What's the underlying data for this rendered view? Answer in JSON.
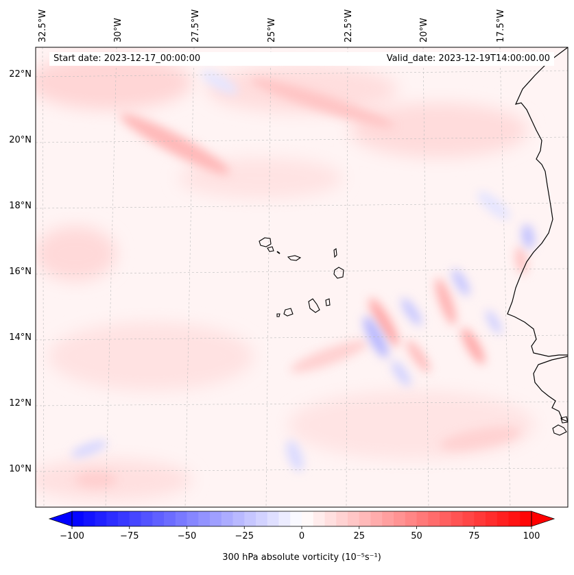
{
  "map": {
    "start_date_label": "Start date: 2023-12-17_00:00:00",
    "valid_date_label": "Valid_date: 2023-12-19T14:00:00.00",
    "lon_labels": [
      "32.5°W",
      "30°W",
      "27.5°W",
      "25°W",
      "22.5°W",
      "20°W",
      "17.5°W"
    ],
    "lat_labels": [
      "22°N",
      "20°N",
      "18°N",
      "16°N",
      "14°N",
      "12°N",
      "10°N"
    ],
    "colors": {
      "negative": "#0000ff",
      "neutral": "#ffffff",
      "positive": "#ff0000",
      "coast": "#000000",
      "grid": "#bbbbbb"
    }
  },
  "colorbar": {
    "min": -100,
    "max": 100,
    "tick_labels": [
      "−100",
      "−75",
      "−50",
      "−25",
      "0",
      "25",
      "50",
      "75",
      "100"
    ],
    "label": "300 hPa absolute vorticity (10⁻⁵s⁻¹)"
  }
}
